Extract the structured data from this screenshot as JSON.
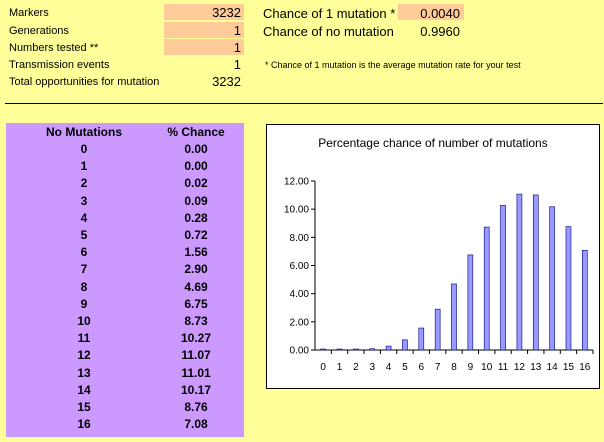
{
  "inputs": {
    "markers": {
      "label": "Markers",
      "value": "3232"
    },
    "generations": {
      "label": "Generations",
      "value": "1"
    },
    "numbers_tested": {
      "label": "Numbers tested **",
      "value": "1"
    },
    "transmission_events": {
      "label": "Transmission events",
      "value": "1"
    },
    "total_opportunities": {
      "label": "Total opportunities for mutation",
      "value": "3232"
    }
  },
  "rates": {
    "chance_one": {
      "label": "Chance of 1 mutation *",
      "value": "0.0040"
    },
    "chance_none": {
      "label": "Chance of no mutation",
      "value": "0.9960"
    },
    "footnote": "* Chance of 1 mutation is the average mutation rate for your test"
  },
  "table": {
    "col1": "No Mutations",
    "col2": "% Chance",
    "rows": [
      {
        "n": "0",
        "pct": "0.00"
      },
      {
        "n": "1",
        "pct": "0.00"
      },
      {
        "n": "2",
        "pct": "0.02"
      },
      {
        "n": "3",
        "pct": "0.09"
      },
      {
        "n": "4",
        "pct": "0.28"
      },
      {
        "n": "5",
        "pct": "0.72"
      },
      {
        "n": "6",
        "pct": "1.56"
      },
      {
        "n": "7",
        "pct": "2.90"
      },
      {
        "n": "8",
        "pct": "4.69"
      },
      {
        "n": "9",
        "pct": "6.75"
      },
      {
        "n": "10",
        "pct": "8.73"
      },
      {
        "n": "11",
        "pct": "10.27"
      },
      {
        "n": "12",
        "pct": "11.07"
      },
      {
        "n": "13",
        "pct": "11.01"
      },
      {
        "n": "14",
        "pct": "10.17"
      },
      {
        "n": "15",
        "pct": "8.76"
      },
      {
        "n": "16",
        "pct": "7.08"
      }
    ]
  },
  "chart_data": {
    "type": "bar",
    "title": "Percentage chance of number of mutations",
    "categories": [
      "0",
      "1",
      "2",
      "3",
      "4",
      "5",
      "6",
      "7",
      "8",
      "9",
      "10",
      "11",
      "12",
      "13",
      "14",
      "15",
      "16"
    ],
    "values": [
      0.0,
      0.0,
      0.02,
      0.09,
      0.28,
      0.72,
      1.56,
      2.9,
      4.69,
      6.75,
      8.73,
      10.27,
      11.07,
      11.01,
      10.17,
      8.76,
      7.08
    ],
    "yticks": [
      "0.00",
      "2.00",
      "4.00",
      "6.00",
      "8.00",
      "10.00",
      "12.00"
    ],
    "ylim": [
      0,
      12
    ],
    "bar_color": "#9999ff",
    "bar_border": "#000080"
  }
}
